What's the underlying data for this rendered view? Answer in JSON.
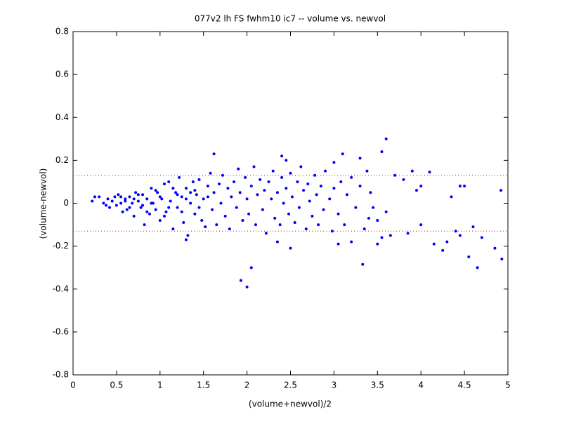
{
  "chart_data": {
    "type": "scatter",
    "title": "077v2 lh FS fwhm10 ic7 -- volume vs. newvol",
    "x_label": "(volume+newvol)/2",
    "y_label": "(volume-newvol)",
    "color": "#0000ff",
    "xlim": [
      0,
      5
    ],
    "xticks": [
      0,
      0.5,
      1,
      1.5,
      2,
      2.5,
      3,
      3.5,
      4,
      4.5,
      5
    ],
    "ylim": [
      -0.8,
      0.8
    ],
    "yticks": [
      -0.8,
      -0.6,
      -0.4,
      -0.2,
      0,
      0.2,
      0.4,
      0.6,
      0.8
    ],
    "hlines": [
      0.13,
      -0.13
    ],
    "hline_color": "#ff0000",
    "x": [
      0.22,
      0.25,
      0.3,
      0.35,
      0.38,
      0.4,
      0.42,
      0.45,
      0.48,
      0.5,
      0.52,
      0.55,
      0.57,
      0.6,
      0.62,
      0.65,
      0.68,
      0.7,
      0.72,
      0.75,
      0.78,
      0.8,
      0.82,
      0.85,
      0.88,
      0.9,
      0.92,
      0.95,
      0.97,
      1.0,
      1.02,
      1.05,
      1.07,
      1.1,
      1.12,
      1.15,
      1.18,
      1.2,
      1.22,
      1.25,
      1.27,
      1.3,
      1.32,
      1.35,
      1.38,
      1.4,
      1.42,
      1.45,
      1.48,
      1.5,
      1.52,
      1.55,
      1.58,
      1.6,
      1.62,
      1.65,
      1.68,
      1.7,
      1.72,
      1.75,
      1.78,
      1.8,
      1.82,
      1.85,
      1.88,
      1.9,
      1.92,
      1.95,
      1.98,
      2.0,
      2.02,
      2.05,
      2.08,
      2.1,
      2.12,
      2.15,
      2.18,
      2.2,
      2.22,
      2.25,
      2.28,
      2.3,
      2.32,
      2.35,
      2.38,
      2.4,
      2.42,
      2.45,
      2.48,
      2.5,
      2.52,
      2.55,
      2.58,
      2.6,
      2.62,
      2.65,
      2.68,
      2.7,
      2.72,
      2.75,
      2.78,
      2.8,
      2.82,
      2.85,
      2.88,
      2.9,
      2.95,
      2.98,
      3.0,
      3.05,
      3.08,
      3.12,
      3.15,
      3.2,
      3.25,
      3.3,
      3.35,
      3.38,
      3.42,
      3.5,
      0.6,
      0.7,
      0.8,
      0.9,
      1.0,
      1.1,
      1.2,
      1.3,
      1.4,
      0.85,
      0.95,
      1.05,
      1.15,
      1.25,
      1.35,
      1.45,
      1.55,
      0.75,
      0.65,
      0.55,
      3.6,
      3.55,
      1.62,
      1.93,
      2.0,
      2.05,
      3.33,
      4.92,
      4.93,
      4.65,
      4.85,
      4.55,
      4.45,
      4.5,
      4.1,
      3.9,
      3.7,
      3.8,
      3.1,
      3.3,
      3.0,
      2.45,
      2.4,
      1.3,
      2.5,
      2.35,
      3.2,
      3.05,
      3.5,
      3.55,
      3.65,
      3.85,
      4.0,
      4.15,
      4.3,
      4.4,
      4.45,
      4.6,
      4.7,
      4.25,
      4.0,
      3.95,
      4.35,
      3.45,
      3.4,
      3.6
    ],
    "values": [
      0.01,
      0.03,
      0.03,
      0.0,
      -0.01,
      0.02,
      -0.02,
      0.01,
      0.03,
      -0.01,
      0.04,
      0.0,
      -0.04,
      0.02,
      -0.03,
      0.03,
      0.0,
      -0.06,
      0.05,
      0.01,
      -0.02,
      0.04,
      -0.1,
      0.02,
      -0.05,
      0.07,
      0.0,
      -0.03,
      0.05,
      -0.08,
      0.02,
      0.09,
      -0.04,
      0.1,
      0.01,
      -0.12,
      0.05,
      -0.02,
      0.12,
      0.03,
      -0.09,
      0.07,
      -0.15,
      0.0,
      0.1,
      -0.05,
      0.04,
      0.11,
      -0.08,
      0.02,
      -0.11,
      0.08,
      0.14,
      -0.03,
      0.05,
      -0.1,
      0.09,
      0.0,
      0.13,
      -0.06,
      0.07,
      -0.12,
      0.03,
      0.1,
      -0.02,
      0.16,
      0.05,
      -0.08,
      0.12,
      0.02,
      -0.05,
      0.08,
      0.17,
      -0.1,
      0.04,
      0.11,
      -0.03,
      0.06,
      -0.14,
      0.1,
      0.02,
      0.15,
      -0.07,
      0.05,
      -0.1,
      0.12,
      0.0,
      0.07,
      -0.05,
      0.14,
      0.03,
      -0.09,
      0.1,
      -0.02,
      0.17,
      0.06,
      -0.12,
      0.09,
      0.01,
      -0.06,
      0.13,
      0.04,
      -0.1,
      0.08,
      -0.03,
      0.15,
      0.02,
      -0.13,
      0.07,
      -0.05,
      0.1,
      -0.1,
      0.04,
      0.12,
      -0.02,
      0.08,
      -0.12,
      0.15,
      0.05,
      -0.08,
      0.01,
      0.02,
      -0.01,
      0.0,
      0.03,
      -0.02,
      0.04,
      0.02,
      0.06,
      -0.04,
      0.06,
      -0.06,
      0.07,
      -0.04,
      0.05,
      -0.02,
      0.03,
      0.04,
      -0.02,
      0.03,
      0.3,
      0.24,
      0.23,
      -0.36,
      -0.39,
      -0.3,
      -0.285,
      0.06,
      -0.26,
      -0.3,
      -0.21,
      -0.25,
      0.08,
      0.08,
      0.145,
      0.15,
      0.13,
      0.11,
      0.23,
      0.21,
      0.19,
      0.2,
      0.22,
      -0.17,
      -0.21,
      -0.18,
      -0.18,
      -0.19,
      -0.19,
      -0.16,
      -0.15,
      -0.14,
      -0.1,
      -0.19,
      -0.18,
      -0.13,
      -0.15,
      -0.11,
      -0.16,
      -0.22,
      0.08,
      0.06,
      0.03,
      -0.02,
      -0.07,
      -0.04
    ]
  }
}
